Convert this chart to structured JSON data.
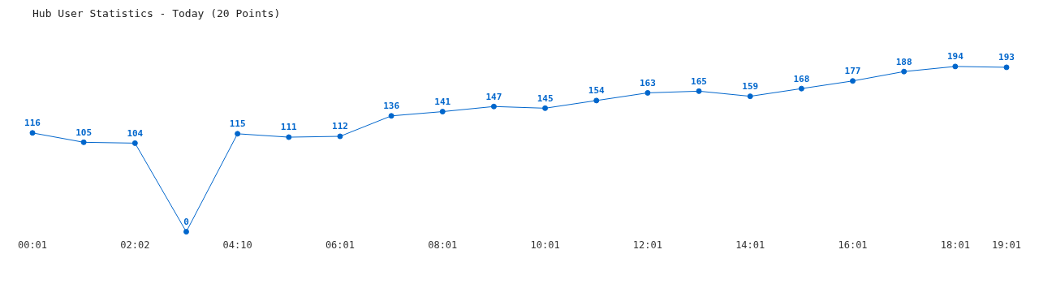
{
  "chart_data": {
    "type": "line",
    "title": "Hub User Statistics - Today (20 Points)",
    "categories": [
      "00:01",
      null,
      "02:02",
      null,
      "04:10",
      null,
      "06:01",
      null,
      "08:01",
      null,
      "10:01",
      null,
      "12:01",
      null,
      "14:01",
      null,
      "16:01",
      null,
      "18:01",
      "19:01"
    ],
    "series": [
      {
        "color": "#0066cc",
        "values": [
          116,
          105,
          104,
          0,
          115,
          111,
          112,
          136,
          141,
          147,
          145,
          154,
          163,
          165,
          159,
          168,
          177,
          188,
          194,
          193
        ]
      }
    ],
    "data_labels": true,
    "marker": "circle",
    "line_style": "solid",
    "grid": false
  }
}
